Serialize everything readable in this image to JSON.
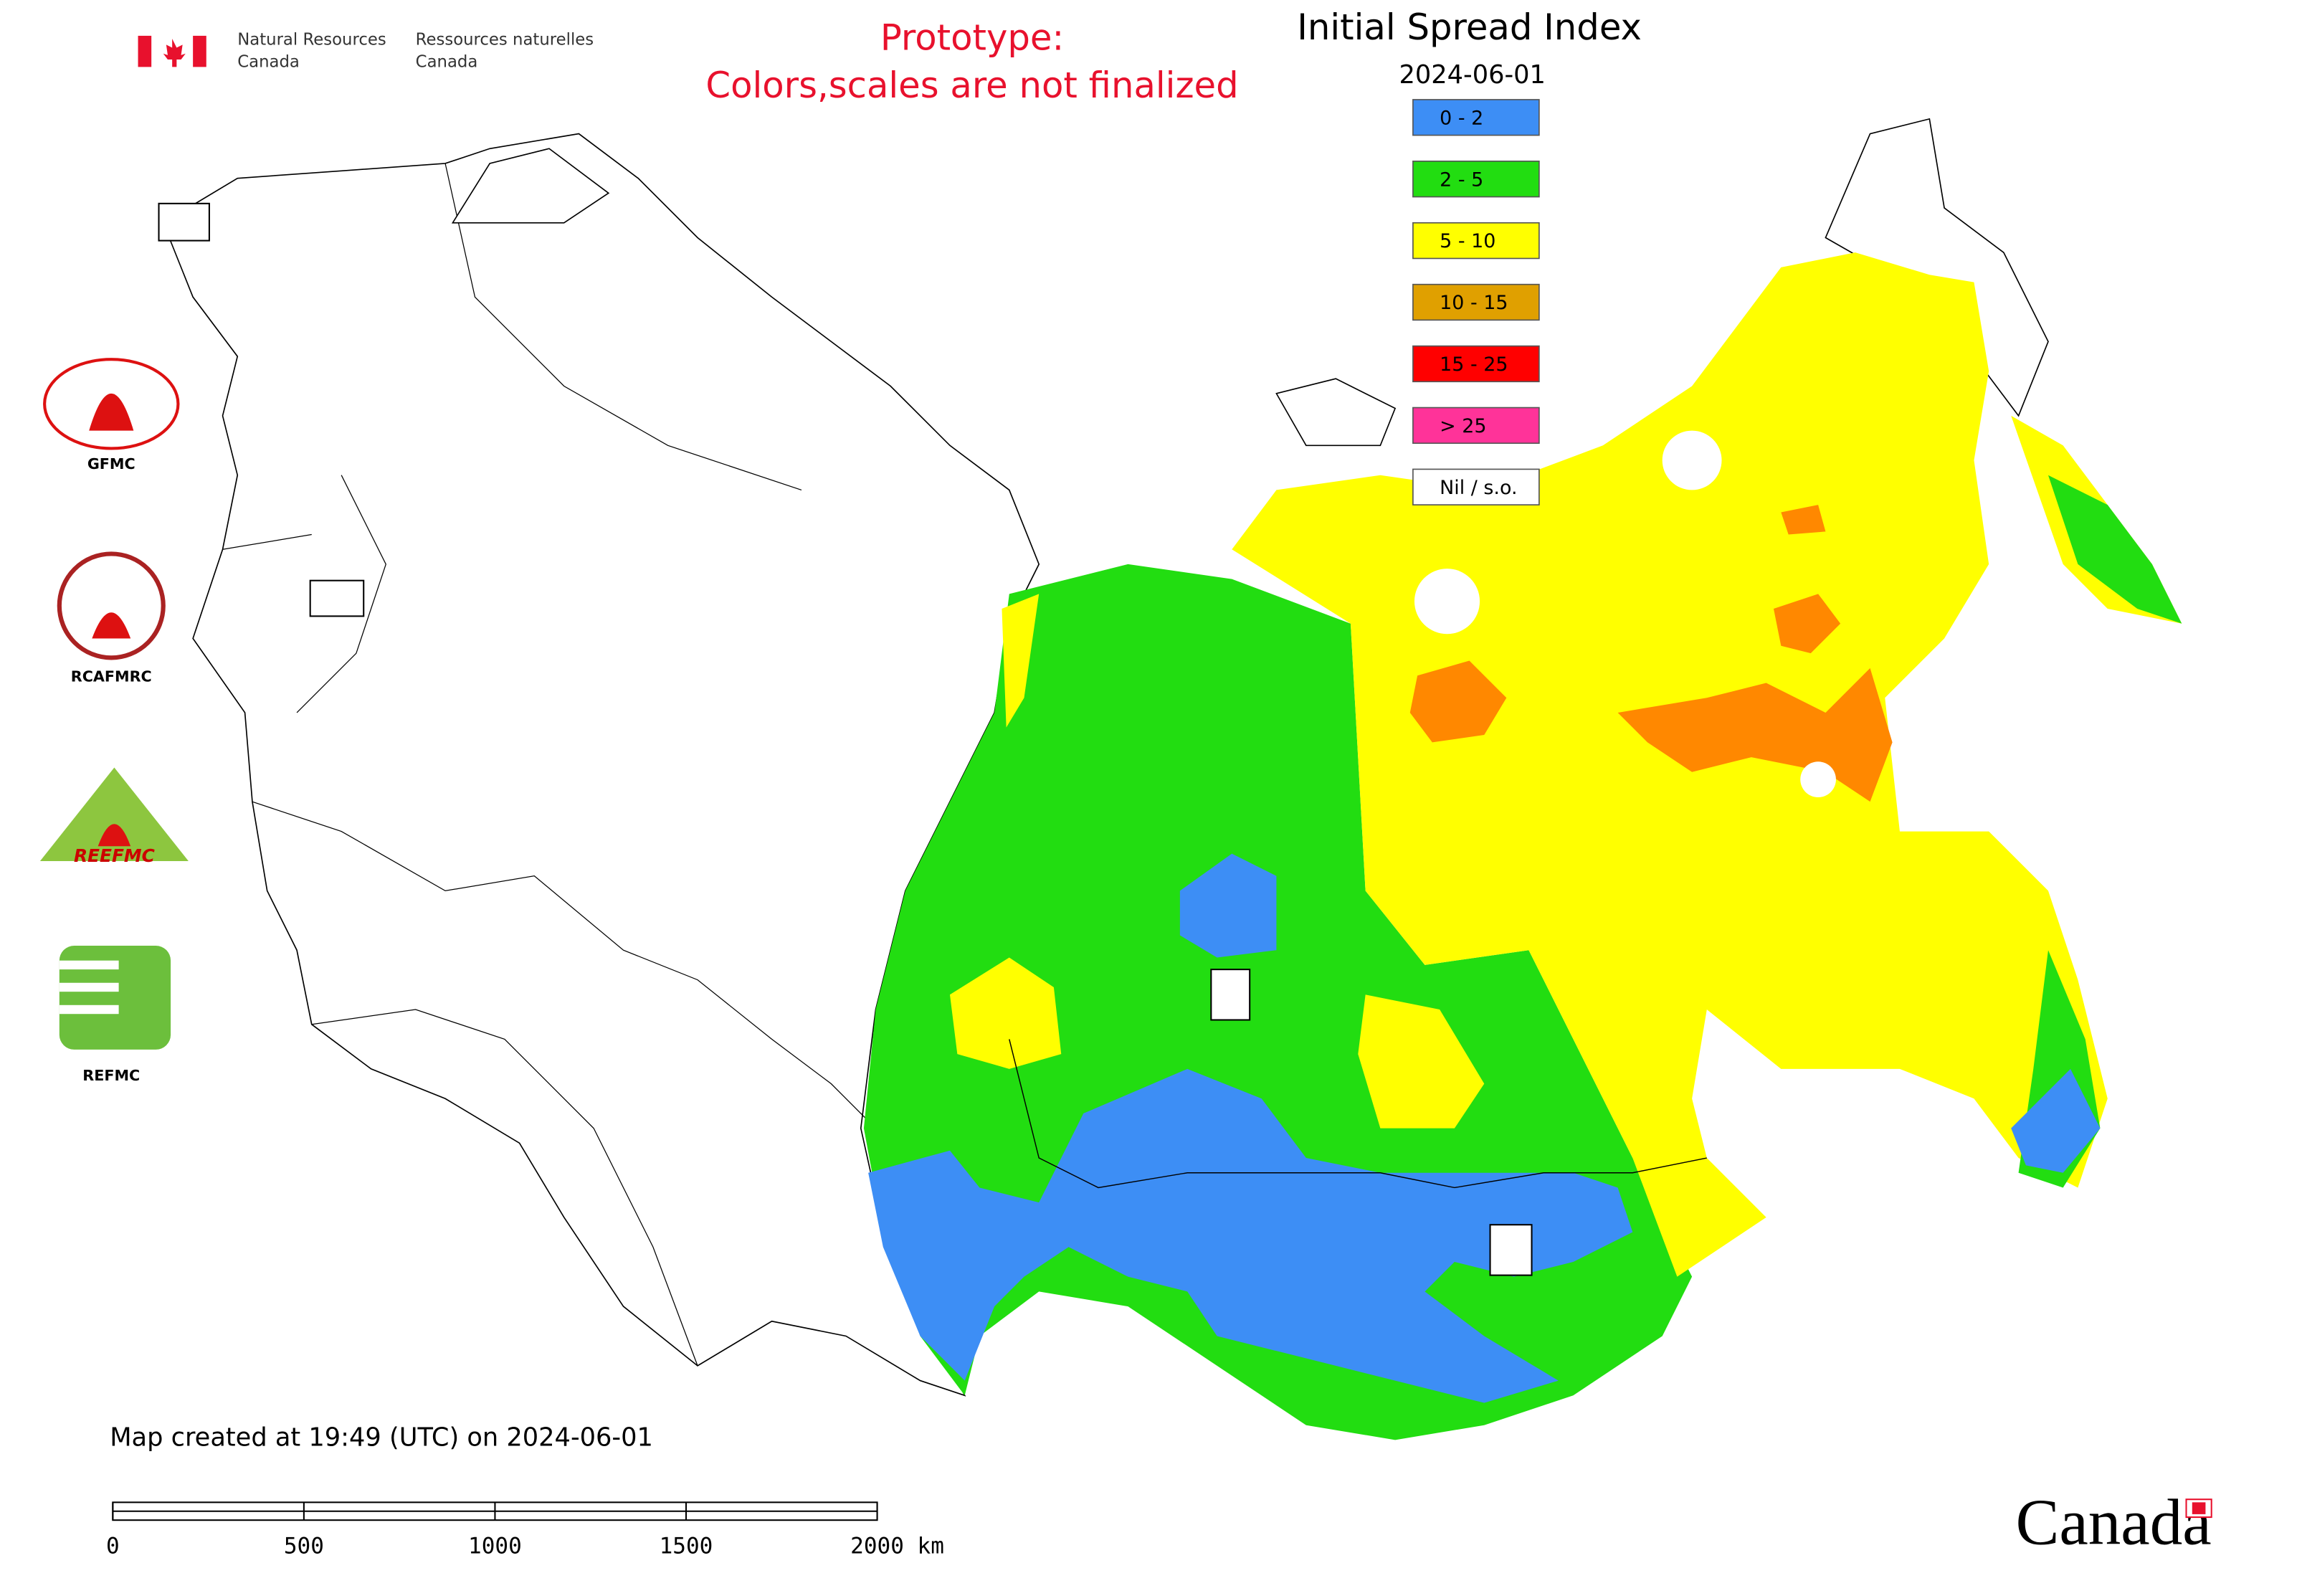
{
  "agency": {
    "en_line1": "Natural Resources",
    "en_line2": "Canada",
    "fr_line1": "Ressources naturelles",
    "fr_line2": "Canada"
  },
  "notice": [
    "Prototype:",
    "Colors,scales are not finalized"
  ],
  "title": "Initial Spread Index",
  "date": "2024-06-01",
  "legend": [
    {
      "label": "0 - 2",
      "color": "#3d8ef5"
    },
    {
      "label": "2 - 5",
      "color": "#22dd11"
    },
    {
      "label": "5 - 10",
      "color": "#ffff00"
    },
    {
      "label": "10 - 15",
      "color": "#e0a000"
    },
    {
      "label": "15 - 25",
      "color": "#ff0000"
    },
    {
      "label": "> 25",
      "color": "#ff3399"
    },
    {
      "label": "Nil / s.o.",
      "color": "#ffffff"
    }
  ],
  "logos": [
    "GFMC",
    "RCAFMRC",
    "REEFMC",
    "REFMC"
  ],
  "footer": "Map created at 19:49 (UTC) on 2024-06-01",
  "scale_bar": {
    "ticks": [
      0,
      500,
      1000,
      1500,
      2000
    ],
    "unit": "km"
  },
  "wordmark": "Canada"
}
